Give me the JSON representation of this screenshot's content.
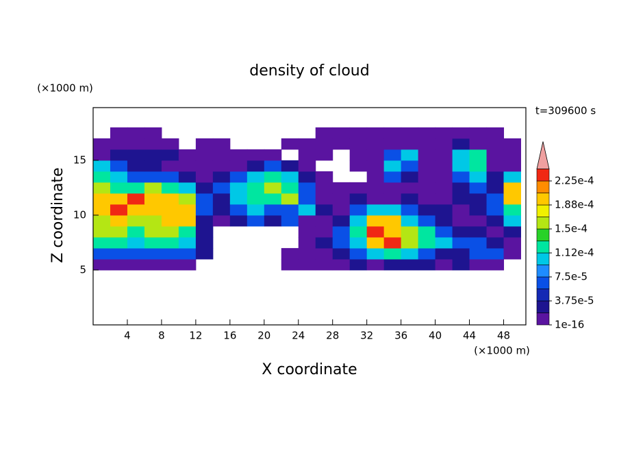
{
  "chart_data": {
    "type": "contour",
    "title": "density of cloud",
    "xlabel": "X coordinate",
    "ylabel": "Z coordinate",
    "xunit": "(×1000 m)",
    "yunit": "(×1000 m)",
    "time_label": "t=309600 s",
    "xlim": [
      0,
      50.6
    ],
    "ylim": [
      0,
      19.8
    ],
    "xticks": [
      4,
      8,
      12,
      16,
      20,
      24,
      28,
      32,
      36,
      40,
      44,
      48
    ],
    "yticks": [
      5,
      10,
      15
    ],
    "x": [
      1,
      3,
      5,
      7,
      9,
      11,
      13,
      15,
      17,
      19,
      21,
      23,
      25,
      27,
      29,
      31,
      33,
      35,
      37,
      39,
      41,
      43,
      45,
      47,
      49
    ],
    "y": [
      5.5,
      6.5,
      7.5,
      8.5,
      9.5,
      10.5,
      11.5,
      12.5,
      13.5,
      14.5,
      15.5,
      16.5,
      17.5
    ],
    "z": [
      [
        5e-06,
        5e-06,
        5e-06,
        5e-06,
        5e-06,
        5e-06,
        0,
        0,
        0,
        0,
        0,
        5e-06,
        5e-06,
        5e-06,
        5e-06,
        3e-05,
        5e-06,
        3e-05,
        3e-05,
        3e-05,
        5e-06,
        3e-05,
        5e-06,
        5e-06,
        0
      ],
      [
        6e-05,
        6e-05,
        6e-05,
        6e-05,
        6e-05,
        6e-05,
        3e-05,
        0,
        0,
        0,
        0,
        5e-06,
        5e-06,
        5e-06,
        3e-05,
        6e-05,
        0.0001,
        0.00013,
        0.0001,
        6e-05,
        3e-05,
        3e-05,
        6e-05,
        6e-05,
        5e-06
      ],
      [
        0.00013,
        0.00013,
        0.0001,
        0.00013,
        0.00013,
        0.0001,
        3e-05,
        0,
        0,
        0,
        0,
        0,
        5e-06,
        3e-05,
        6e-05,
        0.0001,
        0.0002,
        0.00023,
        0.000165,
        0.00013,
        0.0001,
        6e-05,
        6e-05,
        3e-05,
        5e-06
      ],
      [
        0.000165,
        0.000165,
        0.00013,
        0.000165,
        0.000165,
        0.00013,
        3e-05,
        0,
        0,
        0,
        0,
        0,
        5e-06,
        5e-06,
        6e-05,
        0.00013,
        0.00023,
        0.0002,
        0.000165,
        0.00013,
        6e-05,
        3e-05,
        3e-05,
        5e-06,
        3e-05
      ],
      [
        0.000165,
        0.0002,
        0.000165,
        0.000165,
        0.0002,
        0.0002,
        3e-05,
        5e-06,
        3e-05,
        6e-05,
        3e-05,
        6e-05,
        5e-06,
        5e-06,
        3e-05,
        0.0001,
        0.0002,
        0.0002,
        0.0001,
        6e-05,
        3e-05,
        5e-06,
        5e-06,
        3e-05,
        0.0001
      ],
      [
        0.0002,
        0.00023,
        0.0002,
        0.0002,
        0.0002,
        0.0002,
        6e-05,
        3e-05,
        6e-05,
        0.0001,
        6e-05,
        6e-05,
        0.0001,
        3e-05,
        5e-06,
        6e-05,
        0.0001,
        0.0001,
        6e-05,
        3e-05,
        3e-05,
        5e-06,
        3e-05,
        6e-05,
        0.00013
      ],
      [
        0.0002,
        0.0002,
        0.00023,
        0.0002,
        0.0002,
        0.000165,
        6e-05,
        3e-05,
        0.0001,
        0.00013,
        0.00013,
        0.000165,
        6e-05,
        5e-06,
        5e-06,
        3e-05,
        5e-06,
        5e-06,
        3e-05,
        5e-06,
        5e-06,
        3e-05,
        3e-05,
        6e-05,
        0.0002
      ],
      [
        0.000165,
        0.00013,
        0.00013,
        0.000165,
        0.00013,
        0.0001,
        3e-05,
        6e-05,
        0.0001,
        0.00013,
        0.000165,
        0.00013,
        6e-05,
        5e-06,
        5e-06,
        5e-06,
        5e-06,
        5e-06,
        5e-06,
        5e-06,
        5e-06,
        3e-05,
        6e-05,
        3e-05,
        0.0002
      ],
      [
        0.00013,
        0.0001,
        6e-05,
        6e-05,
        6e-05,
        3e-05,
        5e-06,
        3e-05,
        6e-05,
        0.0001,
        0.00013,
        0.0001,
        3e-05,
        5e-06,
        0,
        0,
        5e-06,
        6e-05,
        3e-05,
        5e-06,
        5e-06,
        6e-05,
        0.0001,
        3e-05,
        0.0001
      ],
      [
        0.0001,
        6e-05,
        3e-05,
        3e-05,
        5e-06,
        5e-06,
        5e-06,
        5e-06,
        5e-06,
        3e-05,
        6e-05,
        3e-05,
        5e-06,
        0,
        0,
        5e-06,
        5e-06,
        0.0001,
        6e-05,
        5e-06,
        5e-06,
        0.0001,
        0.00013,
        5e-06,
        5e-06
      ],
      [
        5e-06,
        3e-05,
        3e-05,
        3e-05,
        3e-05,
        5e-06,
        5e-06,
        5e-06,
        5e-06,
        5e-06,
        5e-06,
        0,
        5e-06,
        5e-06,
        0,
        5e-06,
        5e-06,
        6e-05,
        0.0001,
        5e-06,
        5e-06,
        0.0001,
        0.00013,
        5e-06,
        5e-06
      ],
      [
        5e-06,
        5e-06,
        5e-06,
        5e-06,
        5e-06,
        0,
        5e-06,
        5e-06,
        0,
        0,
        0,
        5e-06,
        5e-06,
        5e-06,
        5e-06,
        5e-06,
        5e-06,
        5e-06,
        5e-06,
        5e-06,
        5e-06,
        3e-05,
        5e-06,
        5e-06,
        5e-06
      ],
      [
        0,
        5e-06,
        5e-06,
        5e-06,
        0,
        0,
        0,
        0,
        0,
        0,
        0,
        0,
        0,
        5e-06,
        5e-06,
        5e-06,
        5e-06,
        5e-06,
        5e-06,
        5e-06,
        5e-06,
        5e-06,
        5e-06,
        5e-06,
        0
      ]
    ],
    "levels": [
      1e-16,
      1.875e-05,
      3.75e-05,
      5.625e-05,
      7.5e-05,
      9.375e-05,
      0.0001125,
      0.00013125,
      0.00015,
      0.00016875,
      0.0001875,
      0.00020625,
      0.000225,
      0.00024375
    ],
    "colors": [
      "#5a14a0",
      "#1e1490",
      "#1428b4",
      "#0a50e6",
      "#1e8cff",
      "#00c8e6",
      "#00e6a0",
      "#28d228",
      "#b4e614",
      "#f0f000",
      "#ffc800",
      "#ff8c00",
      "#f02814"
    ],
    "extend_color": "#f0a0a0",
    "colorbar_ticks": [
      {
        "value": 1e-16,
        "label": "1e-16"
      },
      {
        "value": 3.75e-05,
        "label": "3.75e-5"
      },
      {
        "value": 7.5e-05,
        "label": "7.5e-5"
      },
      {
        "value": 0.0001125,
        "label": "1.12e-4"
      },
      {
        "value": 0.00015,
        "label": "1.5e-4"
      },
      {
        "value": 0.0001875,
        "label": "1.88e-4"
      },
      {
        "value": 0.000225,
        "label": "2.25e-4"
      }
    ]
  }
}
